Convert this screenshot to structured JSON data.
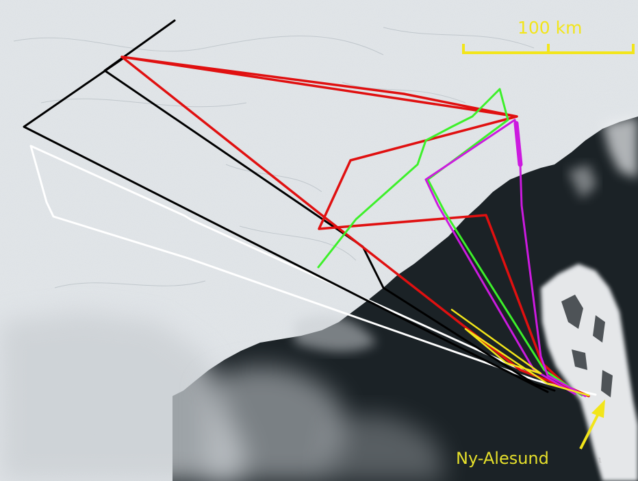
{
  "scale_bar": {
    "label": "100 km",
    "color": "#f2e51a"
  },
  "place_label": {
    "text": "Ny-Alesund",
    "color": "#e6e02b"
  },
  "page_number": "1",
  "flight_tracks": [
    {
      "name": "black",
      "color": "#000000"
    },
    {
      "name": "white",
      "color": "#ffffff"
    },
    {
      "name": "red",
      "color": "#e01010"
    },
    {
      "name": "green",
      "color": "#3df02a"
    },
    {
      "name": "magenta",
      "color": "#cc1adf"
    },
    {
      "name": "yellow",
      "color": "#f2e51a"
    }
  ],
  "colors": {
    "sea_ice": "#e3e7ea",
    "open_water": "#1b2226",
    "cloud": "#c9ced2",
    "snow_land": "#f0f2f4"
  }
}
